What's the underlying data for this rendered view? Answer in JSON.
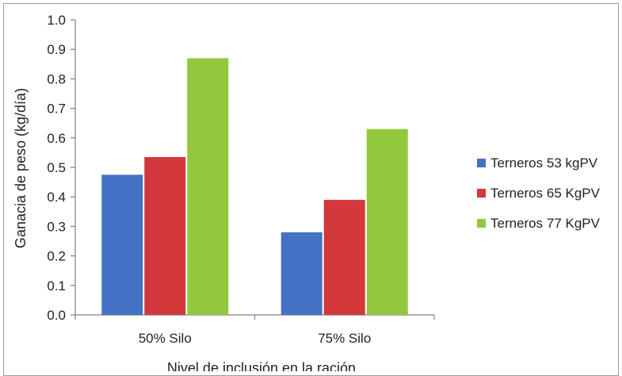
{
  "chart_data": {
    "type": "bar",
    "title": "",
    "xlabel": "Nivel de inclusión en la ración",
    "ylabel": "Ganacia de peso (kg/día)",
    "categories": [
      "50% Silo",
      "75% Silo"
    ],
    "series": [
      {
        "name": "Terneros 53 kgPV",
        "color": "#4472C4",
        "values": [
          0.475,
          0.28
        ]
      },
      {
        "name": "Terneros 65 KgPV",
        "color": "#D2383C",
        "values": [
          0.535,
          0.39
        ]
      },
      {
        "name": "Terneros 77 KgPV",
        "color": "#92C83E",
        "values": [
          0.87,
          0.63
        ]
      }
    ],
    "ylim": [
      0,
      1.0
    ],
    "yticks": [
      "0.0",
      "0.1",
      "0.2",
      "0.3",
      "0.4",
      "0.5",
      "0.6",
      "0.7",
      "0.8",
      "0.9",
      "1.0"
    ],
    "grid": false,
    "legend_position": "right"
  }
}
